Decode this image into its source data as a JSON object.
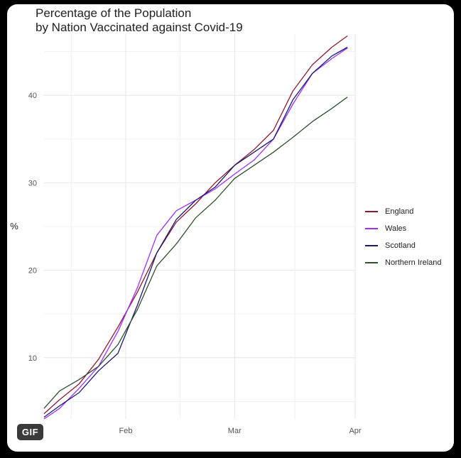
{
  "title_line1": "Percentage of the Population",
  "title_line2": "by Nation Vaccinated against Covid-19",
  "badge": "GIF",
  "chart_data": {
    "type": "line",
    "title": "Percentage of the Population by Nation Vaccinated against Covid-19",
    "xlabel": "",
    "ylabel": "%",
    "x_ticks": [
      "Feb",
      "Mar",
      "Apr"
    ],
    "y_ticks": [
      10,
      20,
      30,
      40
    ],
    "xlim": [
      "2021-01-11",
      "2021-04-01"
    ],
    "ylim": [
      3,
      47
    ],
    "grid": true,
    "legend_position": "right",
    "x": [
      "2021-01-11",
      "2021-01-15",
      "2021-01-20",
      "2021-01-25",
      "2021-01-30",
      "2021-02-04",
      "2021-02-09",
      "2021-02-14",
      "2021-02-19",
      "2021-02-24",
      "2021-03-01",
      "2021-03-06",
      "2021-03-11",
      "2021-03-16",
      "2021-03-21",
      "2021-03-26",
      "2021-03-30"
    ],
    "series": [
      {
        "name": "England",
        "color": "#8b1a2e",
        "values": [
          3.6,
          5.2,
          7.0,
          9.8,
          13.5,
          17.5,
          22.0,
          25.5,
          27.6,
          30.0,
          32.0,
          33.8,
          36.0,
          40.5,
          43.5,
          45.5,
          46.8
        ]
      },
      {
        "name": "Wales",
        "color": "#9b30ff",
        "values": [
          3.0,
          4.2,
          6.5,
          9.0,
          13.0,
          18.0,
          24.0,
          26.8,
          28.0,
          29.3,
          31.0,
          32.6,
          35.0,
          39.0,
          42.5,
          44.2,
          45.4
        ]
      },
      {
        "name": "Scotland",
        "color": "#1a1a6e",
        "values": [
          3.2,
          4.5,
          6.0,
          8.5,
          10.5,
          16.0,
          22.0,
          25.8,
          28.0,
          29.5,
          32.0,
          33.5,
          35.0,
          39.5,
          42.5,
          44.5,
          45.5
        ]
      },
      {
        "name": "Northern Ireland",
        "color": "#2f4f2f",
        "values": [
          4.2,
          6.2,
          7.5,
          9.0,
          11.5,
          15.5,
          20.5,
          23.0,
          26.0,
          28.0,
          30.5,
          32.0,
          33.5,
          35.2,
          37.0,
          38.5,
          39.8
        ]
      }
    ]
  }
}
